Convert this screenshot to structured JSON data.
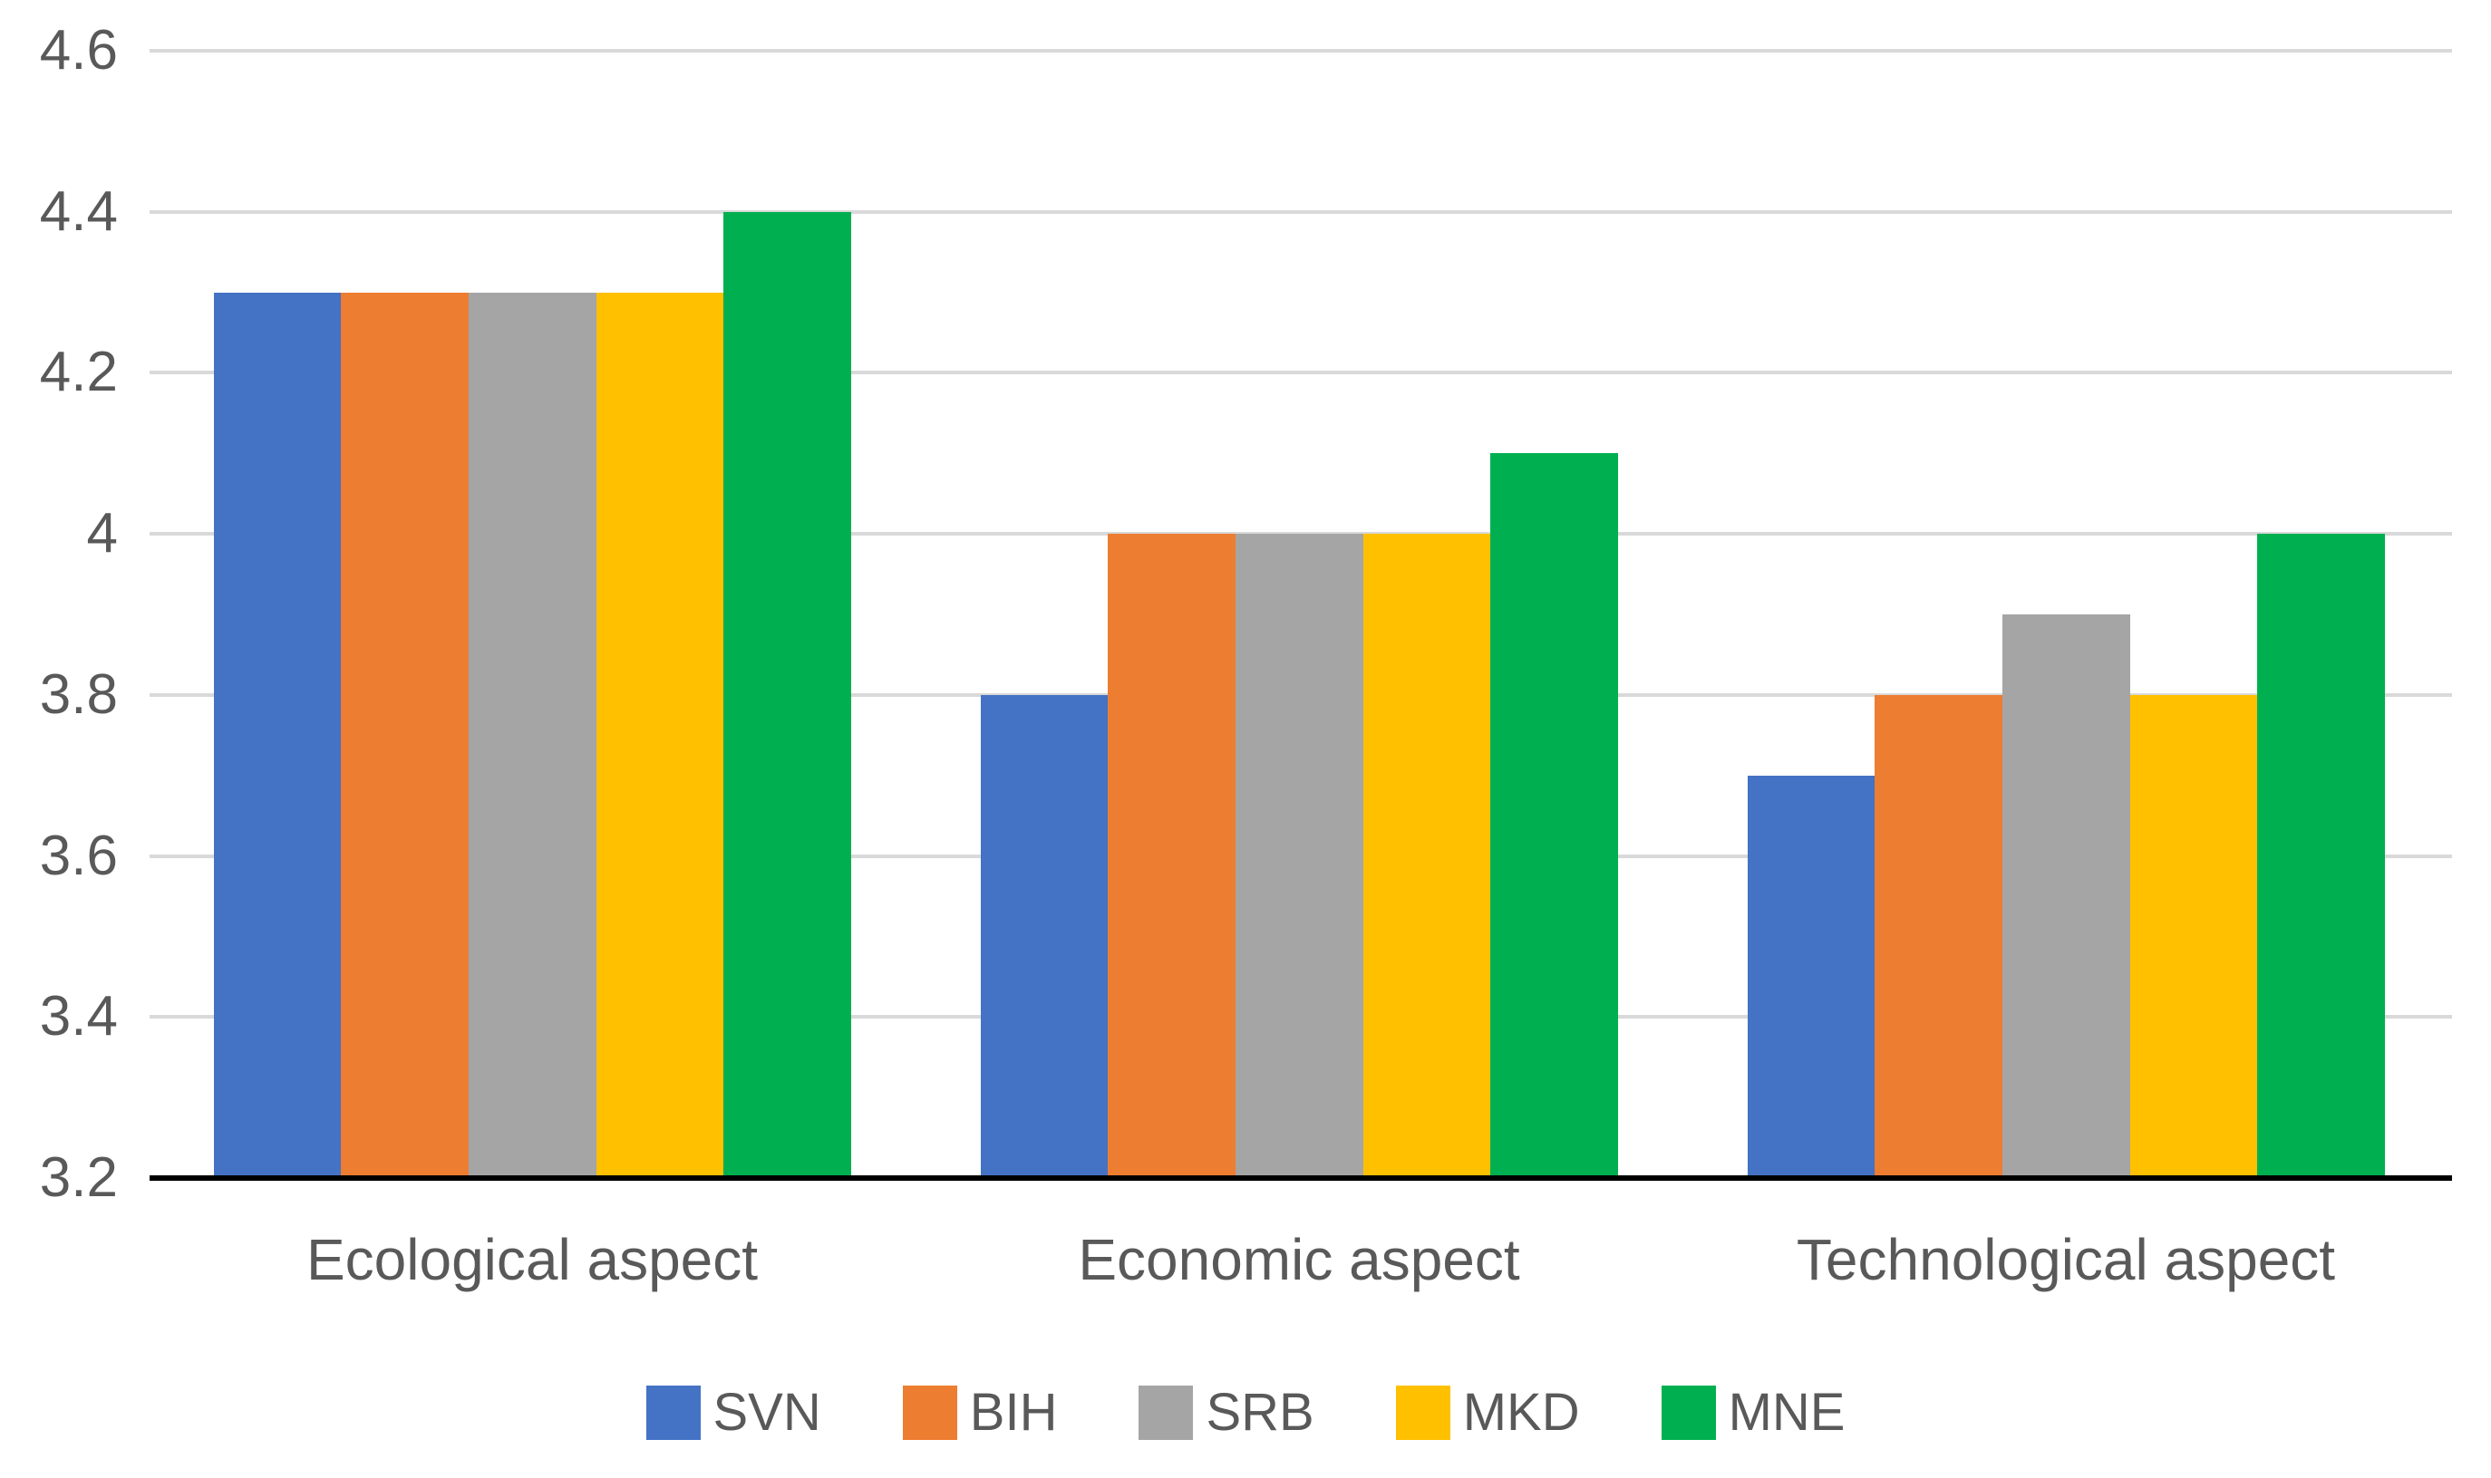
{
  "chart_data": {
    "type": "bar",
    "title": "",
    "categories": [
      "Ecological aspect",
      "Economic aspect",
      "Technological aspect"
    ],
    "series": [
      {
        "name": "SVN",
        "color": "#4472C4",
        "values": [
          4.3,
          3.8,
          3.7
        ]
      },
      {
        "name": "BIH",
        "color": "#ED7D31",
        "values": [
          4.3,
          4.0,
          3.8
        ]
      },
      {
        "name": "SRB",
        "color": "#A5A5A5",
        "values": [
          4.3,
          4.0,
          3.9
        ]
      },
      {
        "name": "MKD",
        "color": "#FFC000",
        "values": [
          4.3,
          4.0,
          3.8
        ]
      },
      {
        "name": "MNE",
        "color": "#00B050",
        "values": [
          4.4,
          4.1,
          4.0
        ]
      }
    ],
    "xlabel": "",
    "ylabel": "",
    "y_axis": {
      "min": 3.2,
      "max": 4.6,
      "step": 0.2,
      "ticks": [
        {
          "value": 3.2,
          "label": "3.2"
        },
        {
          "value": 3.4,
          "label": "3.4"
        },
        {
          "value": 3.6,
          "label": "3.6"
        },
        {
          "value": 3.8,
          "label": "3.8"
        },
        {
          "value": 4.0,
          "label": "4"
        },
        {
          "value": 4.2,
          "label": "4.2"
        },
        {
          "value": 4.4,
          "label": "4.4"
        },
        {
          "value": 4.6,
          "label": "4.6"
        }
      ]
    },
    "grid": true,
    "legend_position": "bottom",
    "colors": {
      "gridline": "#D9D9D9",
      "axis_line": "#000000",
      "text": "#595959",
      "background": "#FFFFFF"
    }
  }
}
